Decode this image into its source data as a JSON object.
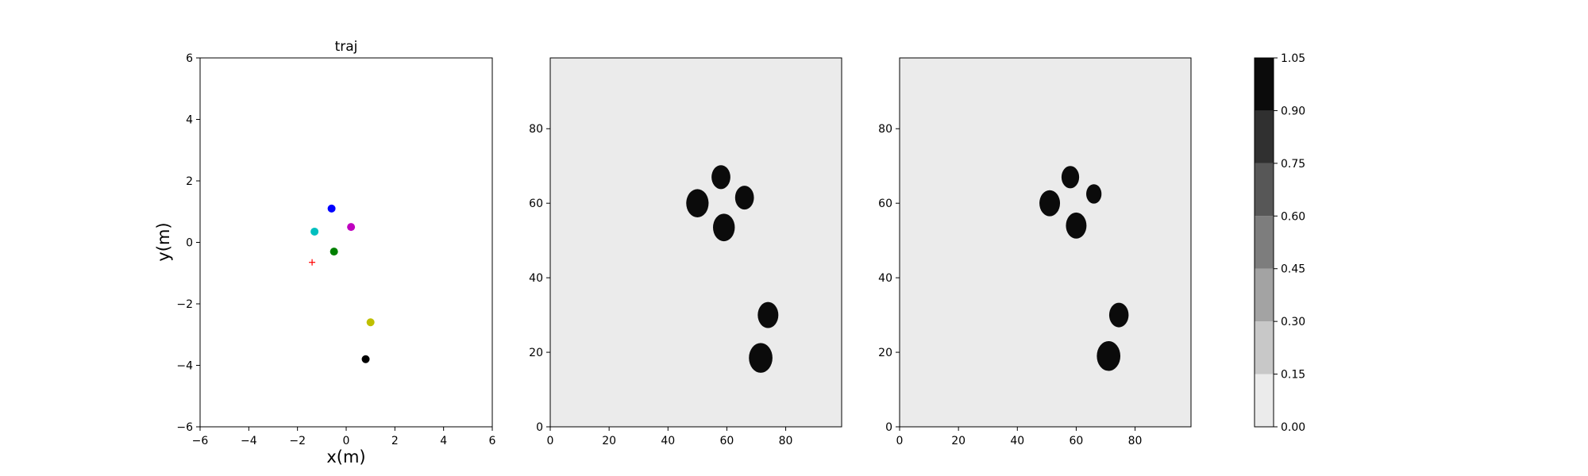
{
  "chart_data": [
    {
      "type": "scatter",
      "title": "traj",
      "xlabel": "x(m)",
      "ylabel": "y(m)",
      "xlim": [
        -6,
        6
      ],
      "ylim": [
        -6,
        6
      ],
      "xticks": [
        -6,
        -4,
        -2,
        0,
        2,
        4,
        6
      ],
      "yticks": [
        -6,
        -4,
        -2,
        0,
        2,
        4,
        6
      ],
      "grid": false,
      "points": [
        {
          "x": -0.6,
          "y": 1.1,
          "color": "#0000ff",
          "marker": "circle"
        },
        {
          "x": 0.2,
          "y": 0.5,
          "color": "#bf00bf",
          "marker": "circle"
        },
        {
          "x": -1.3,
          "y": 0.35,
          "color": "#00bfbf",
          "marker": "circle"
        },
        {
          "x": -0.5,
          "y": -0.3,
          "color": "#008000",
          "marker": "circle"
        },
        {
          "x": 1.0,
          "y": -2.6,
          "color": "#bfbf00",
          "marker": "circle"
        },
        {
          "x": 0.8,
          "y": -3.8,
          "color": "#000000",
          "marker": "circle"
        },
        {
          "x": -1.4,
          "y": -0.65,
          "color": "#ff0000",
          "marker": "plus"
        }
      ]
    },
    {
      "type": "heatmap",
      "xlim": [
        0,
        99
      ],
      "ylim": [
        0,
        99
      ],
      "xticks": [
        0,
        20,
        40,
        60,
        80
      ],
      "yticks": [
        0,
        20,
        40,
        60,
        80
      ],
      "background_value": 0.08,
      "blobs": [
        {
          "cx": 58,
          "cy": 67,
          "r": 3.2,
          "value": 1.0
        },
        {
          "cx": 66,
          "cy": 61.5,
          "r": 3.2,
          "value": 1.0
        },
        {
          "cx": 50,
          "cy": 60,
          "r": 3.8,
          "value": 1.0
        },
        {
          "cx": 59,
          "cy": 53.5,
          "r": 3.7,
          "value": 1.0
        },
        {
          "cx": 74,
          "cy": 30,
          "r": 3.5,
          "value": 1.0
        },
        {
          "cx": 71.5,
          "cy": 18.5,
          "r": 4.0,
          "value": 1.0
        }
      ]
    },
    {
      "type": "heatmap",
      "xlim": [
        0,
        99
      ],
      "ylim": [
        0,
        99
      ],
      "xticks": [
        0,
        20,
        40,
        60,
        80
      ],
      "yticks": [
        0,
        20,
        40,
        60,
        80
      ],
      "background_value": 0.08,
      "blobs": [
        {
          "cx": 58,
          "cy": 67,
          "r": 3.0,
          "value": 1.0
        },
        {
          "cx": 66,
          "cy": 62.5,
          "r": 2.6,
          "value": 1.0
        },
        {
          "cx": 51,
          "cy": 60,
          "r": 3.5,
          "value": 1.0
        },
        {
          "cx": 60,
          "cy": 54,
          "r": 3.5,
          "value": 1.0
        },
        {
          "cx": 74.5,
          "cy": 30,
          "r": 3.3,
          "value": 1.0
        },
        {
          "cx": 71,
          "cy": 19,
          "r": 4.0,
          "value": 1.0
        }
      ]
    }
  ],
  "colorbar": {
    "levels": [
      0.0,
      0.15,
      0.3,
      0.45,
      0.6,
      0.75,
      0.9,
      1.05
    ],
    "tick_labels": [
      "0.00",
      "0.15",
      "0.30",
      "0.45",
      "0.60",
      "0.75",
      "0.90",
      "1.05"
    ],
    "colors": [
      "#ebebeb",
      "#c8c8c8",
      "#a3a3a3",
      "#7d7d7d",
      "#575757",
      "#303030",
      "#0b0b0b"
    ]
  }
}
